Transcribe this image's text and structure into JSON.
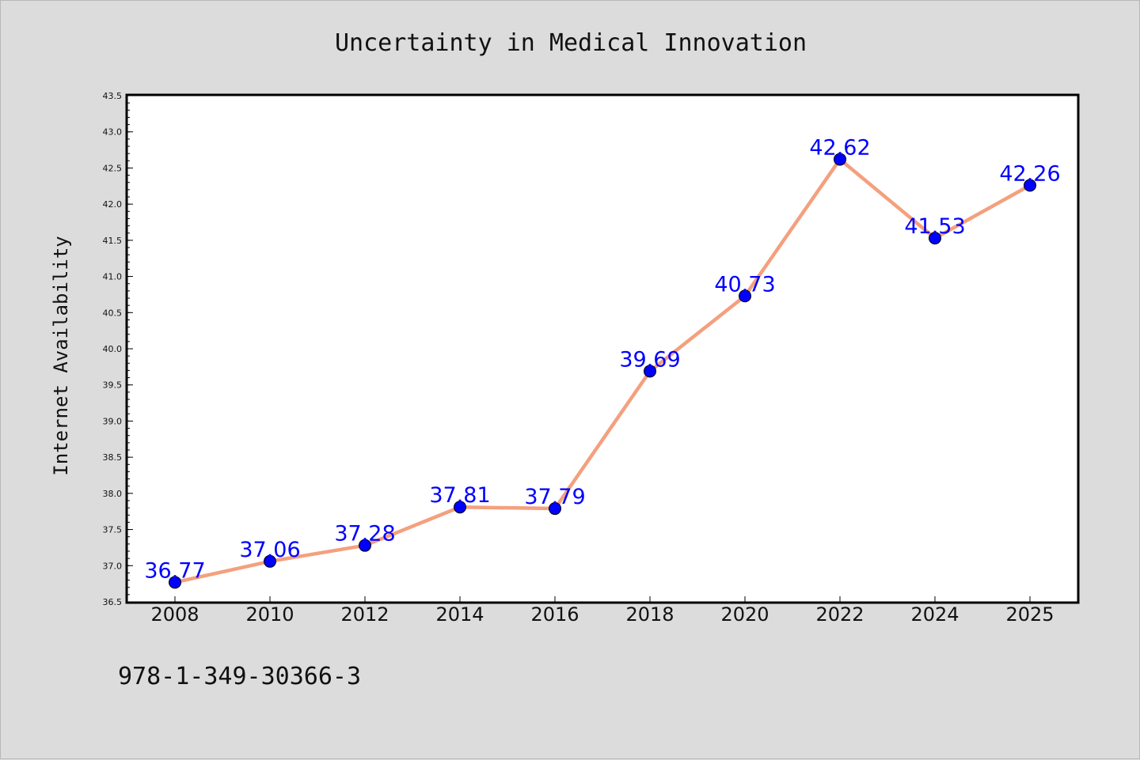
{
  "chart_data": {
    "type": "line",
    "title": "Uncertainty in Medical Innovation",
    "xlabel": "",
    "ylabel": "Internet Availability",
    "categories": [
      "2008",
      "2010",
      "2012",
      "2014",
      "2016",
      "2018",
      "2020",
      "2022",
      "2024",
      "2025"
    ],
    "series": [
      {
        "values": [
          36.77,
          37.06,
          37.28,
          37.81,
          37.79,
          39.69,
          40.73,
          42.62,
          41.53,
          42.26
        ],
        "labels": [
          "36.77",
          "37.06",
          "37.28",
          "37.81",
          "37.79",
          "39.69",
          "40.73",
          "42.62",
          "41.53",
          "42.26"
        ],
        "line_color": "#f4a07e",
        "marker_color": "#0000ff"
      }
    ],
    "ylim": [
      36.5,
      43.5
    ],
    "yticks": [
      "36.5",
      "37.0",
      "37.5",
      "38.0",
      "38.5",
      "39.0",
      "39.5",
      "40.0",
      "40.5",
      "41.0",
      "41.5",
      "42.0",
      "42.5",
      "43.0",
      "43.5"
    ],
    "grid": false,
    "legend": "none",
    "label_color": "#0000ff",
    "background_color": "#dcdcdc",
    "plot_background_color": "#ffffff"
  },
  "footer": {
    "code": "978-1-349-30366-3"
  }
}
